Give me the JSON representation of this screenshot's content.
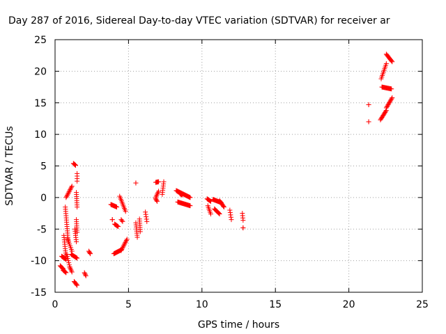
{
  "chart_data": {
    "type": "scatter",
    "title": "Day 287 of 2016, Sidereal Day-to-day VTEC variation (SDTVAR) for receiver ar",
    "xlabel": "GPS time / hours",
    "ylabel": "SDTVAR / TECUs",
    "xlim": [
      0,
      25
    ],
    "ylim": [
      -15,
      25
    ],
    "xticks": [
      0,
      5,
      10,
      15,
      20,
      25
    ],
    "yticks": [
      -15,
      -10,
      -5,
      0,
      5,
      10,
      15,
      20,
      25
    ],
    "xtick_labels": [
      "0",
      "5",
      "10",
      "15",
      "20",
      "25"
    ],
    "ytick_labels": [
      "-15",
      "-10",
      "-5",
      "0",
      "5",
      "10",
      "15",
      "20",
      "25"
    ],
    "grid": true,
    "marker": "+",
    "color": "#ff0000",
    "series": [
      {
        "name": "SDTVAR",
        "segments": [
          {
            "t0": 0.35,
            "t1": 0.55,
            "v0": -10.8,
            "v1": -11.3
          },
          {
            "t0": 0.45,
            "t1": 0.75,
            "v0": -9.3,
            "v1": -9.8
          },
          {
            "t0": 0.55,
            "t1": 0.75,
            "v0": -11.5,
            "v1": -11.9
          },
          {
            "t0": 0.6,
            "t1": 0.75,
            "v0": -6.0,
            "v1": -9.5
          },
          {
            "t0": 0.7,
            "t1": 0.9,
            "v0": -1.5,
            "v1": -7.0
          },
          {
            "t0": 0.75,
            "t1": 1.15,
            "v0": 0.0,
            "v1": 1.8
          },
          {
            "t0": 0.8,
            "t1": 1.0,
            "v0": -9.0,
            "v1": -11.0
          },
          {
            "t0": 0.85,
            "t1": 1.15,
            "v0": -6.5,
            "v1": -8.5
          },
          {
            "t0": 1.0,
            "t1": 1.15,
            "v0": -11.0,
            "v1": -11.8
          },
          {
            "t0": 1.1,
            "t1": 1.5,
            "v0": -9.0,
            "v1": -9.6
          },
          {
            "t0": 1.25,
            "t1": 1.4,
            "v0": 5.4,
            "v1": 5.1
          },
          {
            "t0": 1.3,
            "t1": 1.5,
            "v0": -13.3,
            "v1": -13.9
          },
          {
            "t0": 1.35,
            "t1": 1.45,
            "v0": -5.0,
            "v1": -7.0
          },
          {
            "t0": 1.5,
            "t1": 1.5,
            "v0": 3.8,
            "v1": 2.6
          },
          {
            "t0": 1.45,
            "t1": 1.5,
            "v0": 0.8,
            "v1": -1.5
          },
          {
            "t0": 1.45,
            "t1": 1.5,
            "v0": -3.5,
            "v1": -5.5
          },
          {
            "t0": 2.0,
            "t1": 2.1,
            "v0": -11.9,
            "v1": -12.4
          },
          {
            "t0": 2.3,
            "t1": 2.4,
            "v0": -8.5,
            "v1": -8.9
          },
          {
            "t0": 3.8,
            "t1": 4.2,
            "v0": -1.1,
            "v1": -1.5
          },
          {
            "t0": 3.9,
            "t1": 3.9,
            "v0": -3.5,
            "v1": -3.5
          },
          {
            "t0": 4.05,
            "t1": 4.3,
            "v0": -4.2,
            "v1": -4.6
          },
          {
            "t0": 4.0,
            "t1": 4.5,
            "v0": -8.9,
            "v1": -8.3
          },
          {
            "t0": 4.4,
            "t1": 4.8,
            "v0": 0.2,
            "v1": -2.2
          },
          {
            "t0": 4.5,
            "t1": 4.9,
            "v0": -8.4,
            "v1": -6.6
          },
          {
            "t0": 4.5,
            "t1": 4.6,
            "v0": -3.5,
            "v1": -3.8
          },
          {
            "t0": 5.5,
            "t1": 5.5,
            "v0": 2.3,
            "v1": 2.3
          },
          {
            "t0": 5.5,
            "t1": 5.6,
            "v0": -4.0,
            "v1": -6.3
          },
          {
            "t0": 5.75,
            "t1": 5.8,
            "v0": -3.4,
            "v1": -5.4
          },
          {
            "t0": 6.15,
            "t1": 6.25,
            "v0": -2.3,
            "v1": -3.8
          },
          {
            "t0": 6.85,
            "t1": 7.05,
            "v0": 2.4,
            "v1": 2.5
          },
          {
            "t0": 6.85,
            "t1": 7.05,
            "v0": 0.0,
            "v1": 1.0
          },
          {
            "t0": 6.85,
            "t1": 6.95,
            "v0": -0.2,
            "v1": -0.6
          },
          {
            "t0": 7.3,
            "t1": 7.4,
            "v0": 0.5,
            "v1": 2.5
          },
          {
            "t0": 8.25,
            "t1": 9.2,
            "v0": 1.1,
            "v1": 0.0
          },
          {
            "t0": 8.35,
            "t1": 9.2,
            "v0": -0.7,
            "v1": -1.3
          },
          {
            "t0": 8.5,
            "t1": 8.65,
            "v0": 0.6,
            "v1": 0.4
          },
          {
            "t0": 10.35,
            "t1": 10.6,
            "v0": -0.2,
            "v1": -0.6
          },
          {
            "t0": 10.4,
            "t1": 10.6,
            "v0": -1.3,
            "v1": -2.6
          },
          {
            "t0": 10.75,
            "t1": 11.3,
            "v0": -0.3,
            "v1": -0.8
          },
          {
            "t0": 10.85,
            "t1": 11.2,
            "v0": -1.8,
            "v1": -2.6
          },
          {
            "t0": 11.2,
            "t1": 11.5,
            "v0": -0.5,
            "v1": -1.5
          },
          {
            "t0": 11.9,
            "t1": 12.0,
            "v0": -2.0,
            "v1": -3.5
          },
          {
            "t0": 12.75,
            "t1": 12.8,
            "v0": -2.5,
            "v1": -3.6
          },
          {
            "t0": 12.8,
            "t1": 12.8,
            "v0": -4.8,
            "v1": -4.8
          },
          {
            "t0": 21.35,
            "t1": 21.35,
            "v0": 14.7,
            "v1": 14.7
          },
          {
            "t0": 21.35,
            "t1": 21.35,
            "v0": 12.0,
            "v1": 12.0
          },
          {
            "t0": 22.2,
            "t1": 22.55,
            "v0": 18.8,
            "v1": 21.2
          },
          {
            "t0": 22.55,
            "t1": 22.95,
            "v0": 22.7,
            "v1": 21.5
          },
          {
            "t0": 22.25,
            "t1": 22.9,
            "v0": 17.5,
            "v1": 17.2
          },
          {
            "t0": 22.15,
            "t1": 22.55,
            "v0": 12.3,
            "v1": 13.8
          },
          {
            "t0": 22.55,
            "t1": 22.95,
            "v0": 14.2,
            "v1": 15.8
          }
        ]
      }
    ]
  }
}
